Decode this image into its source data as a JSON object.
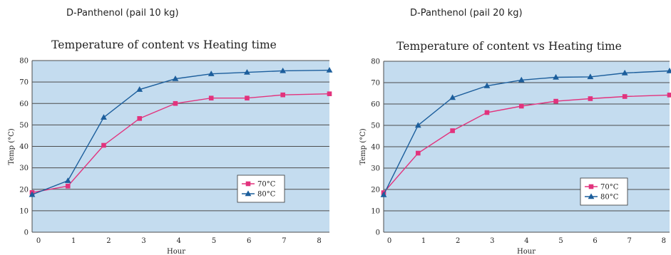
{
  "captions": {
    "left": "D-Panthenol (pail 10 kg)",
    "right": "D-Panthenol (pail 20 kg)"
  },
  "colors": {
    "plot_bg": "#c4dcef",
    "grid": "#4d4d4d",
    "series_70": "#e2337d",
    "series_80": "#1c5e9c"
  },
  "chart_data": [
    {
      "type": "line",
      "title": "Temperature of content vs Heating time",
      "xlabel": "Hour",
      "ylabel": "Temp (°C)",
      "xlim": [
        0,
        8.3
      ],
      "ylim": [
        0,
        80
      ],
      "x_ticks": [
        "0",
        "1",
        "2",
        "3",
        "4",
        "5",
        "6",
        "7",
        "8"
      ],
      "y_ticks": [
        "0",
        "10",
        "20",
        "30",
        "40",
        "50",
        "60",
        "70",
        "80"
      ],
      "legend_position": "lower-right",
      "series": [
        {
          "name": "70°C",
          "marker": "square",
          "points": [
            [
              0,
              18.5
            ],
            [
              1,
              21.5
            ],
            [
              2,
              40.5
            ],
            [
              3,
              53
            ],
            [
              4,
              60
            ],
            [
              5,
              62.5
            ],
            [
              6,
              62.5
            ],
            [
              7,
              64
            ],
            [
              8.3,
              64.5
            ]
          ]
        },
        {
          "name": "80°C",
          "marker": "triangle",
          "points": [
            [
              0,
              17.5
            ],
            [
              1,
              24
            ],
            [
              2,
              53.5
            ],
            [
              3,
              66.5
            ],
            [
              4,
              71.5
            ],
            [
              5,
              73.8
            ],
            [
              6,
              74.5
            ],
            [
              7,
              75.2
            ],
            [
              8.3,
              75.5
            ]
          ]
        }
      ]
    },
    {
      "type": "line",
      "title": "Temperature of content vs Heating time",
      "xlabel": "Hour",
      "ylabel": "Temp (°C)",
      "xlim": [
        0,
        8.3
      ],
      "ylim": [
        0,
        80
      ],
      "x_ticks": [
        "0",
        "1",
        "2",
        "3",
        "4",
        "5",
        "6",
        "7",
        "8"
      ],
      "y_ticks": [
        "0",
        "10",
        "20",
        "30",
        "40",
        "50",
        "60",
        "70",
        "80"
      ],
      "legend_position": "lower-right",
      "series": [
        {
          "name": "70°C",
          "marker": "square",
          "points": [
            [
              0,
              18.5
            ],
            [
              1,
              37
            ],
            [
              2,
              47.5
            ],
            [
              3,
              56
            ],
            [
              4,
              59
            ],
            [
              5,
              61.3
            ],
            [
              6,
              62.5
            ],
            [
              7,
              63.5
            ],
            [
              8.3,
              64.2
            ]
          ]
        },
        {
          "name": "80°C",
          "marker": "triangle",
          "points": [
            [
              0,
              17.5
            ],
            [
              1,
              50
            ],
            [
              2,
              63
            ],
            [
              3,
              68.5
            ],
            [
              4,
              71.2
            ],
            [
              5,
              72.5
            ],
            [
              6,
              72.7
            ],
            [
              7,
              74.5
            ],
            [
              8.3,
              75.5
            ]
          ]
        }
      ]
    }
  ]
}
